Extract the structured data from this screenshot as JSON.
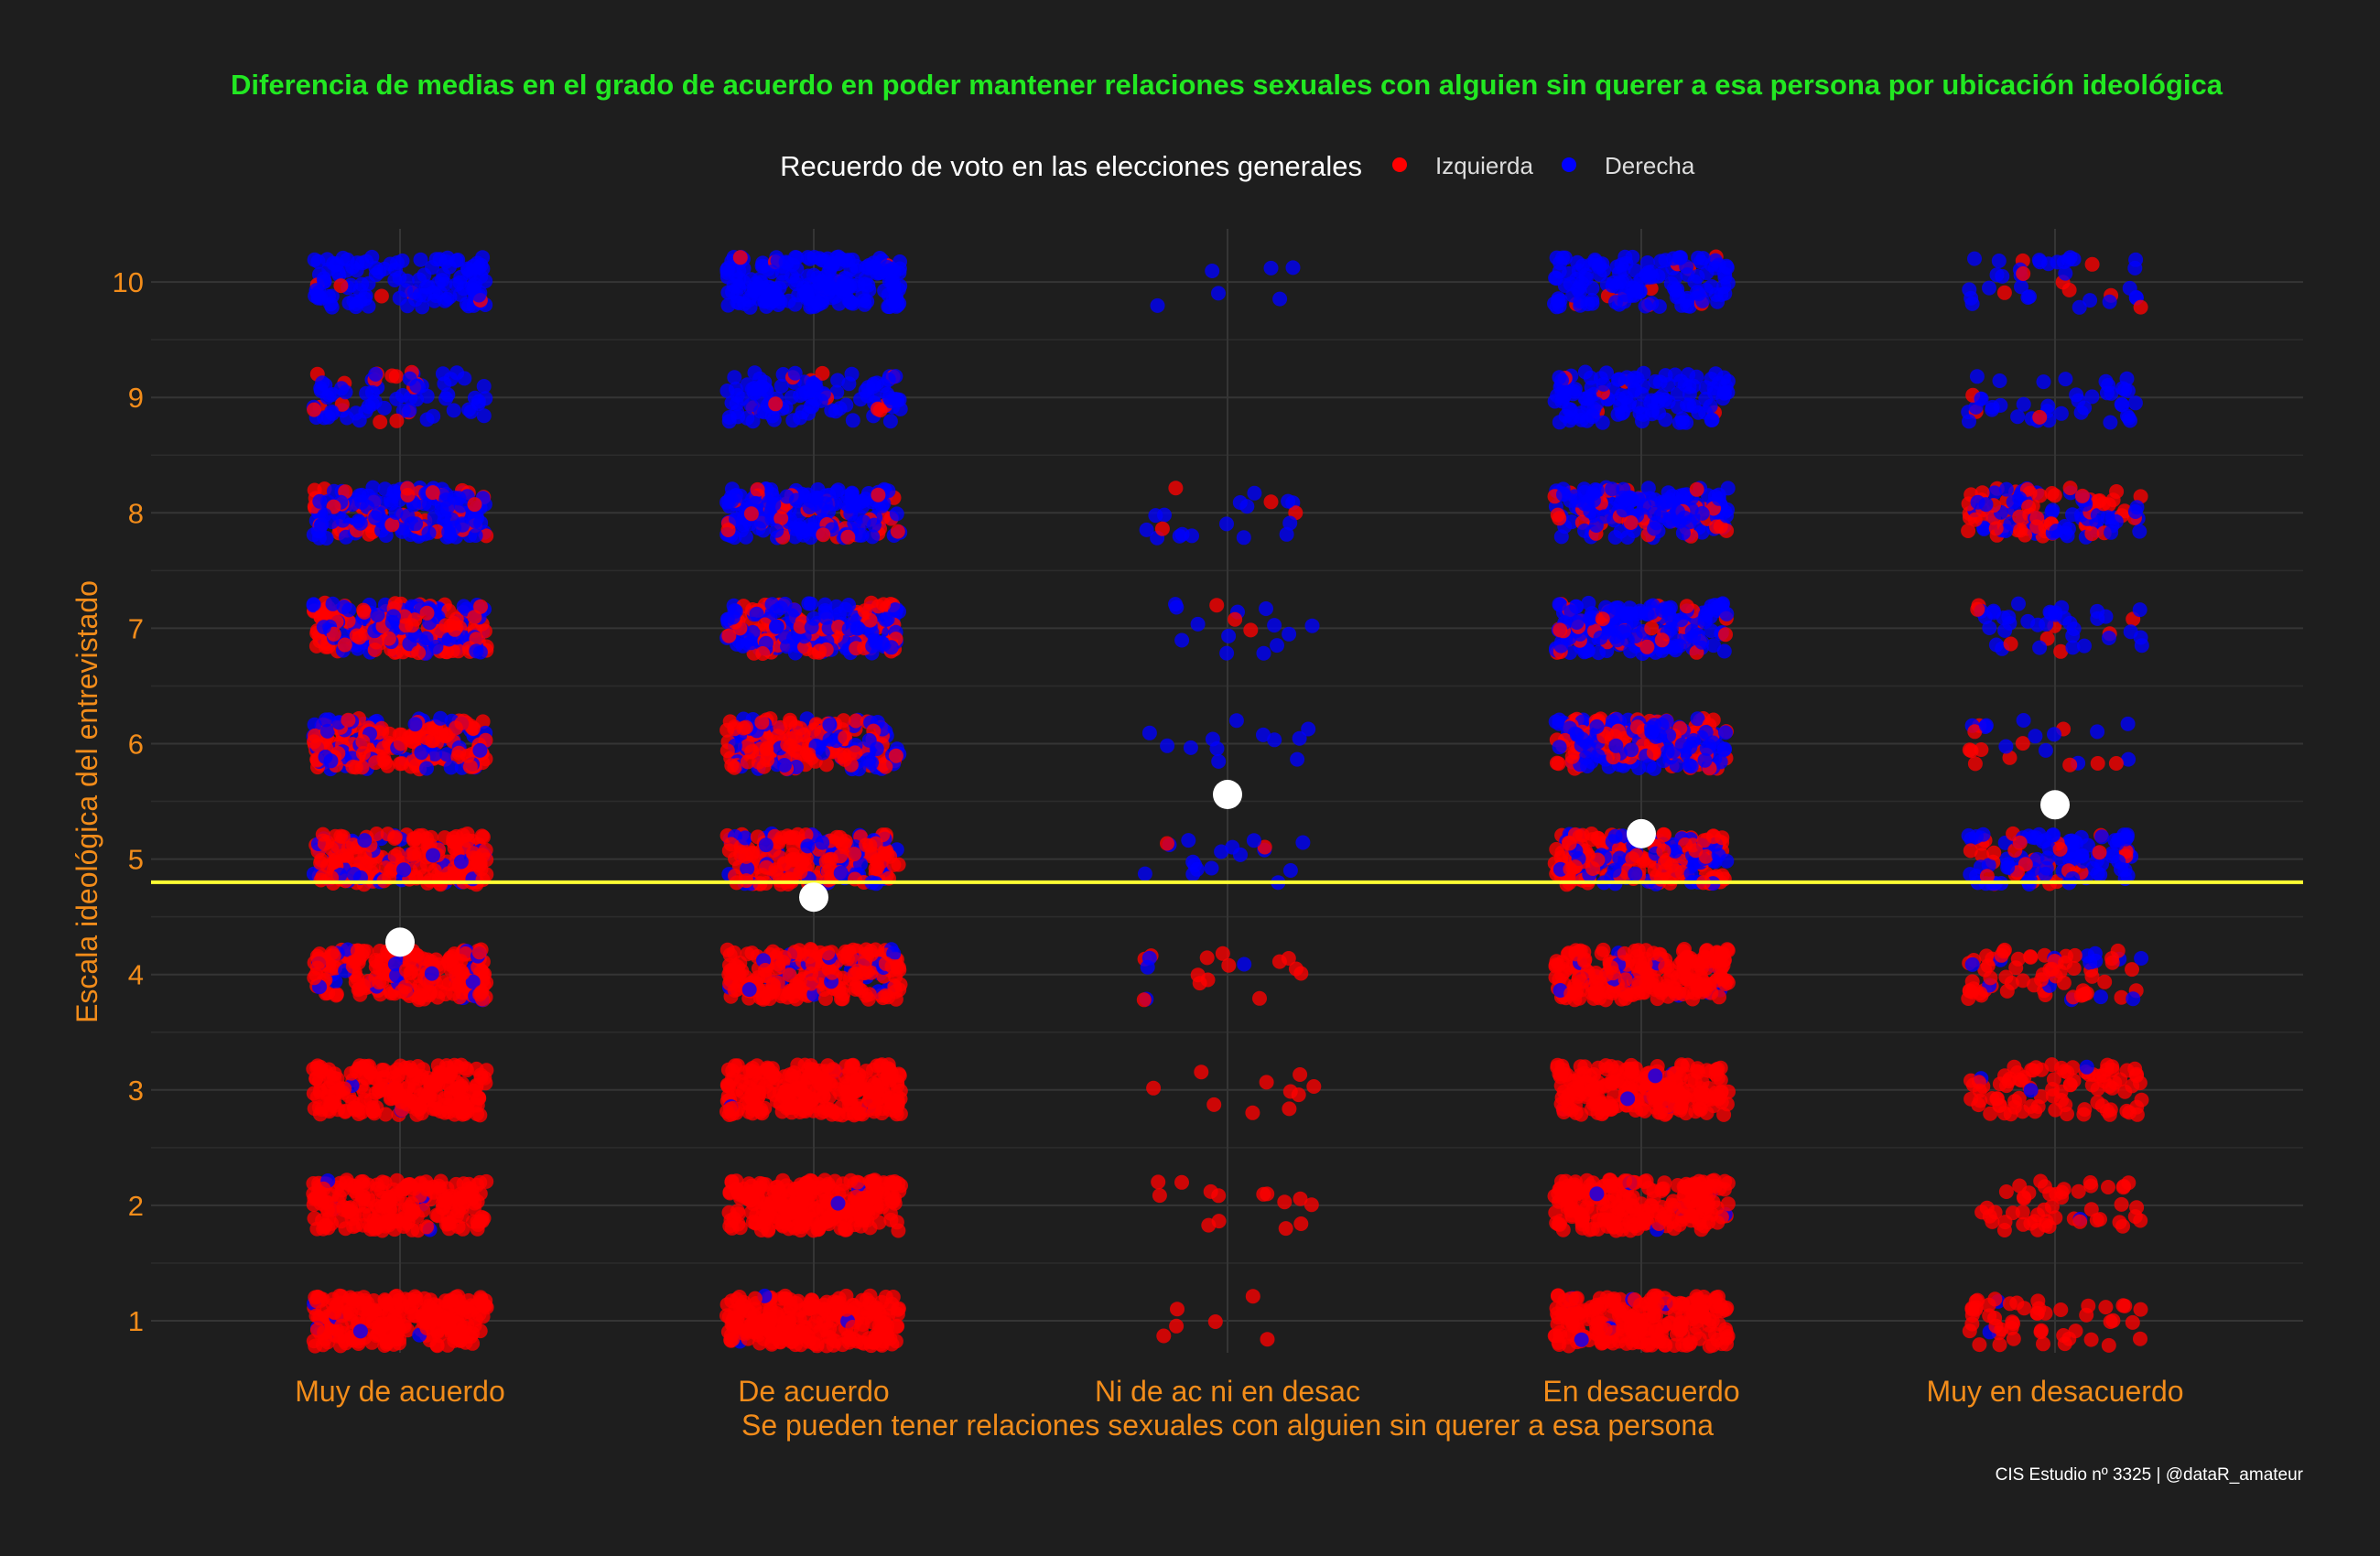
{
  "chart_data": {
    "type": "scatter",
    "title": "Diferencia de medias en el grado de acuerdo en poder mantener relaciones sexuales con alguien sin querer a esa persona por ubicación ideológica",
    "xlabel": "Se pueden tener relaciones sexuales con alguien sin querer a esa persona",
    "ylabel": "Escala ideológica del entrevistado",
    "caption": "CIS Estudio nº 3325 | @dataR_amateur",
    "categories": [
      "Muy de acuerdo",
      "De acuerdo",
      "Ni de ac ni en desac",
      "En desacuerdo",
      "Muy en desacuerdo"
    ],
    "y_ticks": [
      1,
      2,
      3,
      4,
      5,
      6,
      7,
      8,
      9,
      10
    ],
    "ylim": [
      0.8,
      10.5
    ],
    "grid": true,
    "legend": {
      "title": "Recuerdo de voto en las elecciones generales",
      "placement": "top",
      "entries": [
        {
          "name": "Izquierda",
          "color": "#ff0000"
        },
        {
          "name": "Derecha",
          "color": "#0000ff"
        }
      ]
    },
    "colors": {
      "background": "#1e1e1e",
      "title": "#22e822",
      "axis_text": "#f28c1a",
      "grid": "#333333",
      "reference_line": "#ffff33",
      "mean_marker": "#ffffff"
    },
    "reference_line_y": 4.8,
    "means": [
      4.28,
      4.67,
      5.56,
      5.22,
      5.47
    ],
    "density": [
      [
        [
          240,
          6
        ],
        [
          210,
          5
        ],
        [
          230,
          3
        ],
        [
          200,
          30
        ],
        [
          180,
          50
        ],
        [
          150,
          70
        ],
        [
          140,
          110
        ],
        [
          50,
          140
        ],
        [
          15,
          60
        ],
        [
          5,
          120
        ]
      ],
      [
        [
          250,
          3
        ],
        [
          260,
          2
        ],
        [
          260,
          3
        ],
        [
          200,
          30
        ],
        [
          150,
          60
        ],
        [
          120,
          80
        ],
        [
          100,
          130
        ],
        [
          40,
          160
        ],
        [
          10,
          100
        ],
        [
          5,
          200
        ]
      ],
      [
        [
          6,
          0
        ],
        [
          14,
          0
        ],
        [
          10,
          0
        ],
        [
          14,
          4
        ],
        [
          2,
          16
        ],
        [
          0,
          12
        ],
        [
          3,
          13
        ],
        [
          4,
          16
        ],
        [
          0,
          0
        ],
        [
          0,
          6
        ]
      ],
      [
        [
          230,
          8
        ],
        [
          220,
          6
        ],
        [
          220,
          6
        ],
        [
          230,
          20
        ],
        [
          140,
          80
        ],
        [
          90,
          110
        ],
        [
          40,
          160
        ],
        [
          40,
          140
        ],
        [
          5,
          120
        ],
        [
          10,
          130
        ]
      ],
      [
        [
          50,
          2
        ],
        [
          50,
          1
        ],
        [
          90,
          3
        ],
        [
          60,
          15
        ],
        [
          30,
          90
        ],
        [
          12,
          12
        ],
        [
          8,
          35
        ],
        [
          60,
          60
        ],
        [
          3,
          40
        ],
        [
          8,
          30
        ]
      ]
    ]
  }
}
